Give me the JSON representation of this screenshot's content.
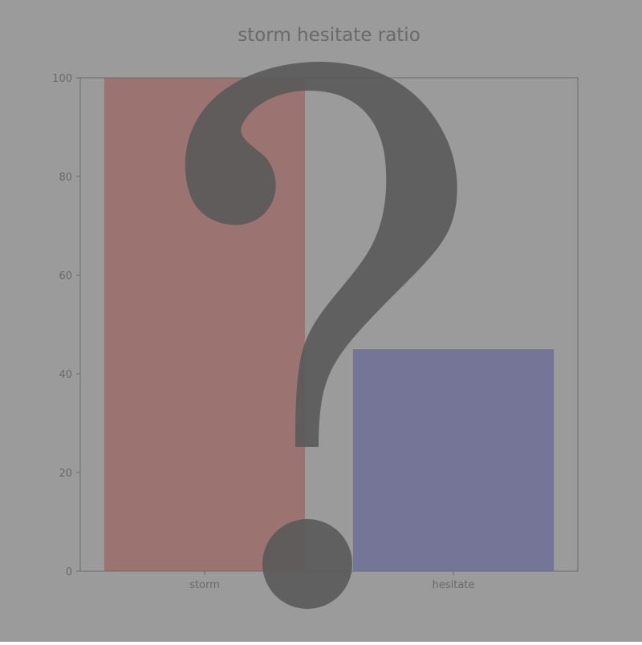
{
  "colors": {
    "background": "#9b9b9b",
    "text": "#6a6a6a",
    "axis": "#6e6e6e",
    "glyph": "#5a5a5a"
  },
  "overlay": {
    "icon": "question-mark-icon",
    "glyph": "?"
  },
  "chart_data": {
    "type": "bar",
    "title": "storm hesitate ratio",
    "xlabel": "",
    "ylabel": "",
    "categories": [
      "storm",
      "hesitate"
    ],
    "values": [
      100,
      45
    ],
    "bar_colors": [
      "#9b7371",
      "#757597"
    ],
    "ylim": [
      0,
      100
    ],
    "yticks": [
      0,
      20,
      40,
      60,
      80,
      100
    ],
    "grid": false,
    "legend": "none"
  }
}
